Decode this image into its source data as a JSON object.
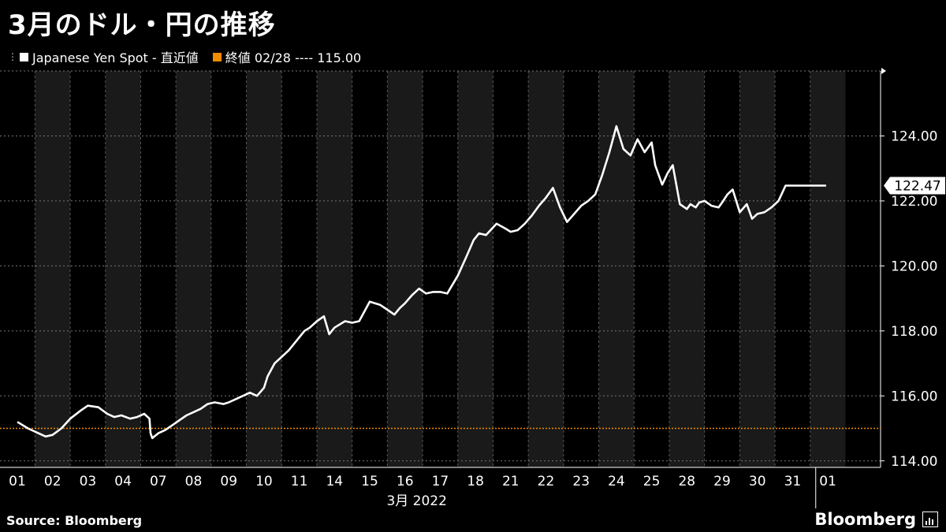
{
  "header": {
    "title": "3月のドル・円の推移"
  },
  "legend": {
    "series_label": "Japanese Yen Spot - 直近値",
    "reference_label": "終値 02/28 ---- 115.00"
  },
  "footer": {
    "source": "Source:  Bloomberg",
    "brand": "Bloomberg"
  },
  "colors": {
    "background": "#000000",
    "band": "#1a1a1a",
    "series": "#ffffff",
    "reference": "#f08c00",
    "grid": "#777777"
  },
  "chart_data": {
    "type": "line",
    "title": "3月のドル・円の推移",
    "xlabel": "3月 2022",
    "ylabel": "",
    "x_ticks": [
      "01",
      "02",
      "03",
      "04",
      "07",
      "08",
      "09",
      "10",
      "11",
      "14",
      "15",
      "16",
      "17",
      "18",
      "21",
      "22",
      "23",
      "24",
      "25",
      "28",
      "29",
      "30",
      "31",
      "01"
    ],
    "y_ticks": [
      114,
      116,
      118,
      120,
      122,
      124
    ],
    "y_tick_labels": [
      "114.00",
      "116.00",
      "118.00",
      "120.00",
      "122.00",
      "124.00"
    ],
    "ylim": [
      113.8,
      126.0
    ],
    "grid": true,
    "legend_position": "top-left",
    "last_value": 122.47,
    "last_value_label": "122.47",
    "reference_line": {
      "name": "終値 02/28",
      "value": 115.0
    },
    "series": [
      {
        "name": "Japanese Yen Spot - 直近値",
        "x": [
          0,
          0.3,
          0.6,
          0.8,
          1.0,
          1.25,
          1.5,
          1.8,
          2.0,
          2.3,
          2.55,
          2.75,
          2.95,
          3.2,
          3.4,
          3.6,
          3.75,
          3.78,
          3.83,
          4.0,
          4.2,
          4.4,
          4.6,
          4.8,
          5.0,
          5.2,
          5.4,
          5.6,
          5.85,
          6.0,
          6.2,
          6.4,
          6.6,
          6.8,
          7.0,
          7.1,
          7.3,
          7.5,
          7.7,
          7.85,
          8.0,
          8.15,
          8.3,
          8.5,
          8.7,
          8.85,
          9.0,
          9.3,
          9.5,
          9.7,
          9.85,
          10.0,
          10.3,
          10.5,
          10.7,
          10.85,
          11.0,
          11.2,
          11.4,
          11.6,
          11.8,
          12.0,
          12.2,
          12.5,
          12.75,
          12.95,
          13.1,
          13.3,
          13.6,
          13.85,
          14.0,
          14.2,
          14.4,
          14.6,
          14.8,
          15.0,
          15.2,
          15.4,
          15.6,
          15.8,
          16.0,
          16.2,
          16.4,
          16.6,
          16.8,
          17.0,
          17.2,
          17.4,
          17.6,
          17.8,
          18.0,
          18.1,
          18.3,
          18.45,
          18.6,
          18.8,
          19.0,
          19.1,
          19.25,
          19.35,
          19.5,
          19.7,
          19.9,
          20.0,
          20.15,
          20.3,
          20.5,
          20.7,
          20.85,
          21.0,
          21.2,
          21.4,
          21.6,
          21.8,
          22.0,
          22.2,
          22.4,
          22.6,
          22.8,
          22.95
        ],
        "y": [
          115.2,
          115.0,
          114.85,
          114.75,
          114.8,
          115.0,
          115.3,
          115.55,
          115.7,
          115.65,
          115.45,
          115.35,
          115.4,
          115.3,
          115.35,
          115.45,
          115.3,
          114.85,
          114.7,
          114.85,
          114.95,
          115.1,
          115.25,
          115.4,
          115.5,
          115.6,
          115.75,
          115.8,
          115.75,
          115.8,
          115.9,
          116.0,
          116.1,
          116.0,
          116.25,
          116.6,
          117.0,
          117.2,
          117.4,
          117.6,
          117.8,
          118.0,
          118.1,
          118.3,
          118.45,
          117.9,
          118.1,
          118.3,
          118.25,
          118.3,
          118.6,
          118.9,
          118.8,
          118.65,
          118.5,
          118.7,
          118.85,
          119.1,
          119.3,
          119.15,
          119.2,
          119.2,
          119.15,
          119.7,
          120.3,
          120.8,
          121.0,
          120.95,
          121.3,
          121.15,
          121.05,
          121.1,
          121.3,
          121.55,
          121.85,
          122.1,
          122.4,
          121.8,
          121.35,
          121.6,
          121.85,
          122.0,
          122.2,
          122.8,
          123.5,
          124.3,
          123.6,
          123.4,
          123.9,
          123.5,
          123.8,
          123.1,
          122.5,
          122.85,
          123.1,
          121.9,
          121.75,
          121.9,
          121.8,
          121.95,
          122.0,
          121.85,
          121.8,
          121.95,
          122.2,
          122.35,
          121.65,
          121.9,
          121.45,
          121.6,
          121.65,
          121.8,
          122.0,
          122.47,
          122.47,
          122.47,
          122.47,
          122.47,
          122.47,
          122.47
        ]
      }
    ]
  }
}
